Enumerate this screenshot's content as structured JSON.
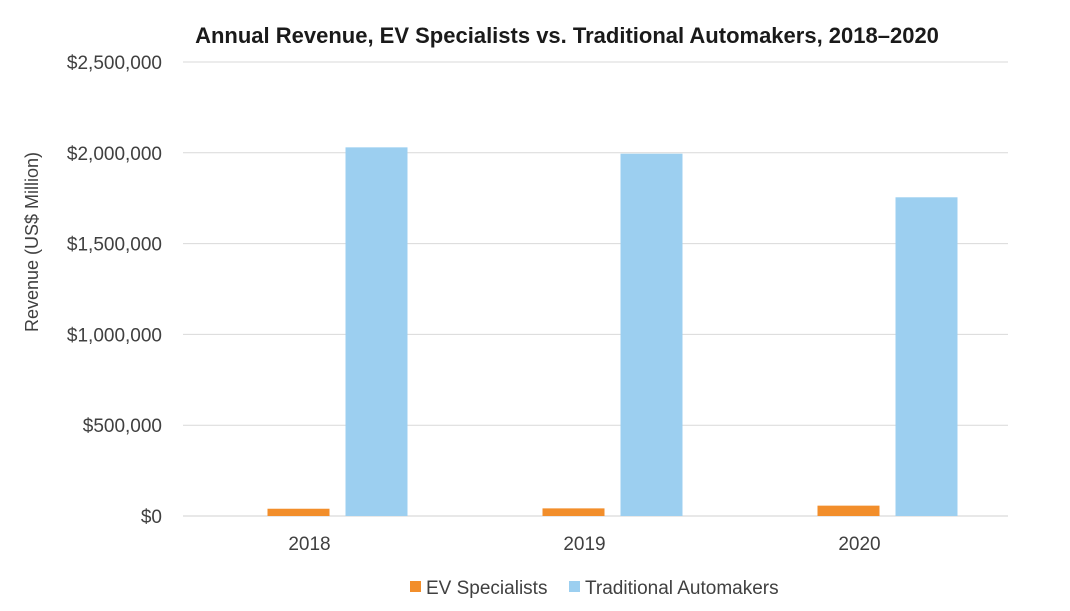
{
  "chart_data": {
    "type": "bar",
    "title": "Annual Revenue, EV Specialists vs. Traditional Automakers, 2018–2020",
    "xlabel": "",
    "ylabel": "Revenue (US$ Million)",
    "categories": [
      "2018",
      "2019",
      "2020"
    ],
    "ylim": [
      0,
      2500000
    ],
    "yticks": [
      0,
      500000,
      1000000,
      1500000,
      2000000,
      2500000
    ],
    "ytick_labels": [
      "$0",
      "$500,000",
      "$1,000,000",
      "$1,500,000",
      "$2,000,000",
      "$2,500,000"
    ],
    "grid": true,
    "legend_position": "bottom",
    "series": [
      {
        "name": "EV Specialists",
        "values": [
          40000,
          42000,
          57000
        ],
        "color": "#f28e2b"
      },
      {
        "name": "Traditional Automakers",
        "values": [
          2030000,
          1995000,
          1755000
        ],
        "color": "#9ccff0"
      }
    ]
  }
}
